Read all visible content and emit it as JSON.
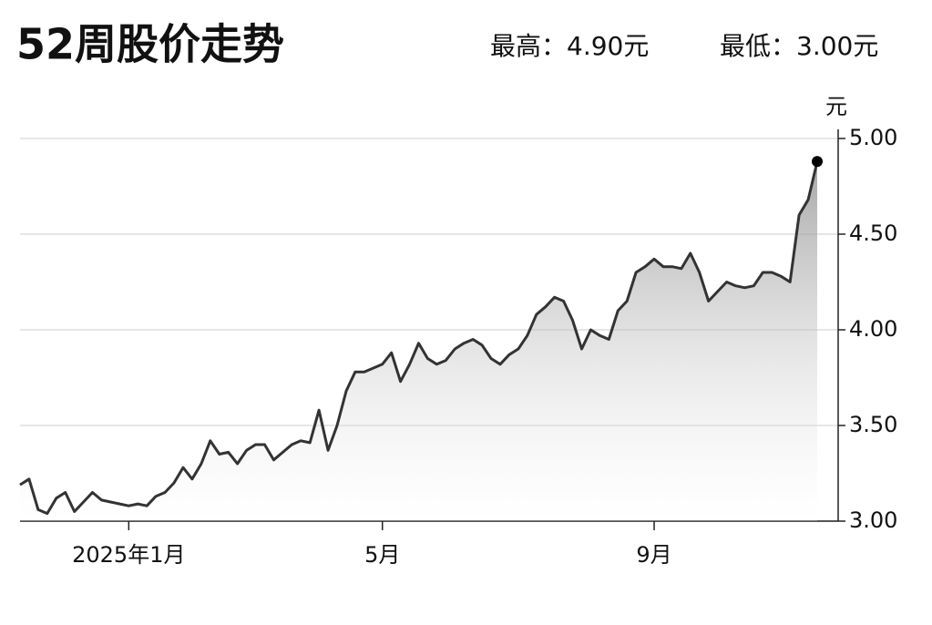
{
  "chart_data": {
    "type": "line",
    "title": "52周股价走势",
    "annotations": [
      "最高：4.90元",
      "最低：3.00元"
    ],
    "y_unit": "元",
    "color": "#333333",
    "grid": true,
    "ylim": [
      3,
      5
    ],
    "yticks": [
      {
        "value": 3,
        "label": "3.00"
      },
      {
        "value": 3.5,
        "label": "3.50"
      },
      {
        "value": 4,
        "label": "4.00"
      },
      {
        "value": 4.5,
        "label": "4.50"
      },
      {
        "value": 5,
        "label": "5.00"
      }
    ],
    "categories": [
      null,
      null,
      null,
      null,
      null,
      null,
      null,
      null,
      null,
      null,
      null,
      null,
      "2025年1月",
      null,
      null,
      null,
      null,
      null,
      null,
      null,
      null,
      null,
      null,
      null,
      null,
      null,
      null,
      null,
      null,
      null,
      null,
      null,
      null,
      null,
      null,
      null,
      null,
      null,
      null,
      null,
      "5月",
      null,
      null,
      null,
      null,
      null,
      null,
      null,
      null,
      null,
      null,
      null,
      null,
      null,
      null,
      null,
      null,
      null,
      null,
      null,
      null,
      null,
      null,
      null,
      null,
      null,
      null,
      null,
      null,
      null,
      "9月",
      null,
      null,
      null,
      null,
      null,
      null,
      null,
      null,
      null,
      null,
      null,
      null,
      null,
      null,
      null,
      null,
      null,
      null
    ],
    "values": [
      3.19,
      3.22,
      3.06,
      3.04,
      3.12,
      3.15,
      3.05,
      3.1,
      3.15,
      3.11,
      3.1,
      3.09,
      3.08,
      3.09,
      3.08,
      3.13,
      3.15,
      3.2,
      3.28,
      3.22,
      3.3,
      3.42,
      3.35,
      3.36,
      3.3,
      3.37,
      3.4,
      3.4,
      3.32,
      3.36,
      3.4,
      3.42,
      3.41,
      3.58,
      3.37,
      3.5,
      3.68,
      3.78,
      3.78,
      3.8,
      3.82,
      3.88,
      3.73,
      3.82,
      3.93,
      3.85,
      3.82,
      3.84,
      3.9,
      3.93,
      3.95,
      3.92,
      3.85,
      3.82,
      3.87,
      3.9,
      3.97,
      4.08,
      4.12,
      4.17,
      4.15,
      4.05,
      3.9,
      4.0,
      3.97,
      3.95,
      4.1,
      4.15,
      4.3,
      4.33,
      4.37,
      4.33,
      4.33,
      4.32,
      4.4,
      4.3,
      4.15,
      4.2,
      4.25,
      4.23,
      4.22,
      4.23,
      4.3,
      4.3,
      4.28,
      4.25,
      4.6,
      4.68,
      4.88
    ]
  }
}
